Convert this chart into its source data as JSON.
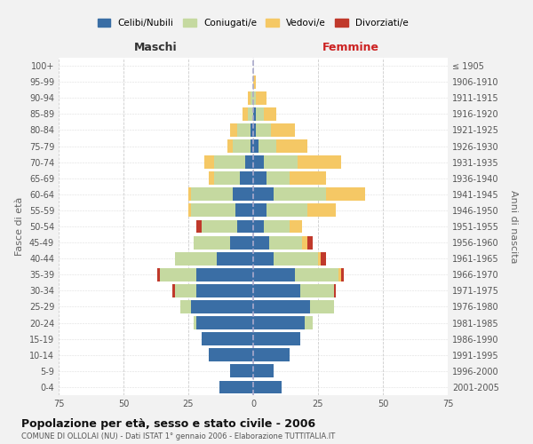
{
  "age_groups": [
    "0-4",
    "5-9",
    "10-14",
    "15-19",
    "20-24",
    "25-29",
    "30-34",
    "35-39",
    "40-44",
    "45-49",
    "50-54",
    "55-59",
    "60-64",
    "65-69",
    "70-74",
    "75-79",
    "80-84",
    "85-89",
    "90-94",
    "95-99",
    "100+"
  ],
  "birth_years": [
    "2001-2005",
    "1996-2000",
    "1991-1995",
    "1986-1990",
    "1981-1985",
    "1976-1980",
    "1971-1975",
    "1966-1970",
    "1961-1965",
    "1956-1960",
    "1951-1955",
    "1946-1950",
    "1941-1945",
    "1936-1940",
    "1931-1935",
    "1926-1930",
    "1921-1925",
    "1916-1920",
    "1911-1915",
    "1906-1910",
    "≤ 1905"
  ],
  "males": {
    "celibi": [
      13,
      9,
      17,
      20,
      22,
      24,
      22,
      22,
      14,
      9,
      6,
      7,
      8,
      5,
      3,
      1,
      1,
      0,
      0,
      0,
      0
    ],
    "coniugati": [
      0,
      0,
      0,
      0,
      1,
      4,
      8,
      14,
      16,
      14,
      14,
      17,
      16,
      10,
      12,
      7,
      5,
      2,
      1,
      0,
      0
    ],
    "vedovi": [
      0,
      0,
      0,
      0,
      0,
      0,
      0,
      0,
      0,
      0,
      0,
      1,
      1,
      2,
      4,
      2,
      3,
      2,
      1,
      0,
      0
    ],
    "divorziati": [
      0,
      0,
      0,
      0,
      0,
      0,
      1,
      1,
      0,
      0,
      2,
      0,
      0,
      0,
      0,
      0,
      0,
      0,
      0,
      0,
      0
    ]
  },
  "females": {
    "nubili": [
      11,
      8,
      14,
      18,
      20,
      22,
      18,
      16,
      8,
      6,
      4,
      5,
      8,
      5,
      4,
      2,
      1,
      1,
      0,
      0,
      0
    ],
    "coniugate": [
      0,
      0,
      0,
      0,
      3,
      9,
      13,
      17,
      17,
      13,
      10,
      16,
      20,
      9,
      13,
      7,
      6,
      3,
      1,
      0,
      0
    ],
    "vedove": [
      0,
      0,
      0,
      0,
      0,
      0,
      0,
      1,
      1,
      2,
      5,
      11,
      15,
      14,
      17,
      12,
      9,
      5,
      4,
      1,
      0
    ],
    "divorziate": [
      0,
      0,
      0,
      0,
      0,
      0,
      1,
      1,
      2,
      2,
      0,
      0,
      0,
      0,
      0,
      0,
      0,
      0,
      0,
      0,
      0
    ]
  },
  "colors": {
    "celibi": "#3A6EA5",
    "coniugati": "#C5D9A0",
    "vedovi": "#F5C865",
    "divorziati": "#C0392B"
  },
  "xlim": 75,
  "title": "Popolazione per età, sesso e stato civile - 2006",
  "subtitle": "COMUNE DI OLLOLAI (NU) - Dati ISTAT 1° gennaio 2006 - Elaborazione TUTTITALIA.IT",
  "legend_labels": [
    "Celibi/Nubili",
    "Coniugati/e",
    "Vedovi/e",
    "Divorziati/e"
  ],
  "ylabel_left": "Fasce di età",
  "ylabel_right": "Anni di nascita",
  "xlabel_maschi": "Maschi",
  "xlabel_femmine": "Femmine",
  "bg_color": "#F2F2F2",
  "plot_bg": "#FFFFFF"
}
